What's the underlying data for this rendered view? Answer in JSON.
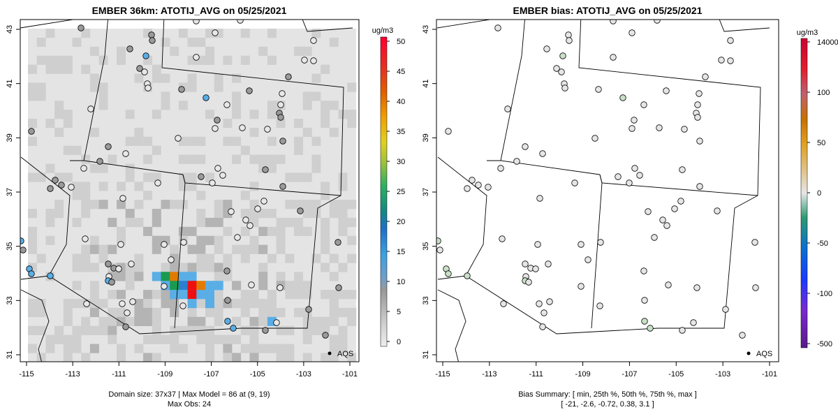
{
  "left_panel": {
    "title": "EMBER 36km: ATOTIJ_AVG on 05/25/2021",
    "colorbar_unit": "ug/m3",
    "colorbar_ticks": [
      "0",
      "5",
      "10",
      "15",
      "20",
      "25",
      "30",
      "35",
      "40",
      "45",
      "50"
    ],
    "footer_line1": "Domain size: 37x37 | Max Model = 86 at (9, 19)",
    "footer_line2": "Max Obs: 24",
    "legend_label": "AQS"
  },
  "right_panel": {
    "title": "EMBER bias: ATOTIJ_AVG on 05/25/2021",
    "colorbar_unit": "ug/m3",
    "colorbar_ticks": [
      "-500",
      "-100",
      "-50",
      "0",
      "50",
      "100",
      "14000"
    ],
    "footer_line1": "Bias Summary: [ min, 25th %, 50th %, 75th %, max ]",
    "footer_line2": "[ -21,   -2.6,   -0.72,   0.38,   3.1 ]",
    "legend_label": "AQS"
  },
  "axes": {
    "x_ticks": [
      "-115",
      "-113",
      "-111",
      "-109",
      "-107",
      "-105",
      "-103",
      "-101"
    ],
    "y_ticks": [
      "31",
      "33",
      "35",
      "37",
      "39",
      "41",
      "43"
    ]
  },
  "map": {
    "lon_range": [
      -115.3,
      -100.9
    ],
    "lat_range": [
      30.8,
      43.3
    ],
    "colors": {
      "background_grey": "#e4e4e4",
      "light_grey": "#cfcfcf",
      "mid_grey": "#b4b4b4",
      "dark_grey": "#9a9a9a",
      "light_blue": "#5aaee6",
      "blue": "#2a7fd0",
      "orange": "#e07b00",
      "red": "#ee1010",
      "green": "#1a9a50",
      "bias_obs_fill": "#e6e6e6"
    }
  }
}
